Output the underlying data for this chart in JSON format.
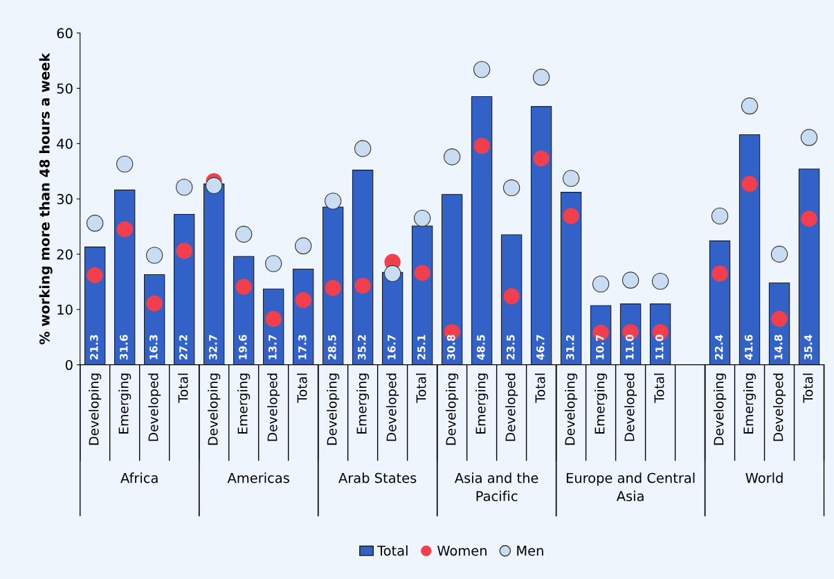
{
  "chart_data": {
    "type": "bar",
    "ylabel": "% working more than 48 hours a week",
    "categories": [
      "Developing",
      "Emerging",
      "Developed",
      "Total",
      "Developing",
      "Emerging",
      "Developed",
      "Total",
      "Developing",
      "Emerging",
      "Developed",
      "Total",
      "Developing",
      "Emerging",
      "Developed",
      "Total",
      "Developing",
      "Emerging",
      "Developed",
      "Total",
      null,
      "Developing",
      "Emerging",
      "Developed",
      "Total"
    ],
    "series": [
      {
        "name": "Total",
        "color": "#3262c8",
        "values": [
          21.3,
          31.6,
          16.3,
          27.2,
          32.7,
          19.6,
          13.7,
          17.3,
          28.5,
          35.2,
          16.7,
          25.1,
          30.8,
          48.5,
          23.5,
          46.7,
          31.2,
          10.7,
          11.0,
          11.0,
          null,
          22.4,
          41.6,
          14.8,
          35.4
        ],
        "value_labels": [
          "21.3",
          "31.6",
          "16.3",
          "27.2",
          "32.7",
          "19.6",
          "13.7",
          "17.3",
          "28.5",
          "35.2",
          "16.7",
          "25.1",
          "30.8",
          "48.5",
          "23.5",
          "46.7",
          "31.2",
          "10.7",
          "11.0",
          "11.0",
          null,
          "22.4",
          "41.6",
          "14.8",
          "35.4"
        ]
      },
      {
        "name": "Women",
        "type": "scatter",
        "color": "#f23f4e",
        "values": [
          16.2,
          24.5,
          11.1,
          20.6,
          33.2,
          14.1,
          8.3,
          11.7,
          13.9,
          14.3,
          18.6,
          16.6,
          5.9,
          39.6,
          12.4,
          37.3,
          26.9,
          5.8,
          5.9,
          5.9,
          null,
          16.5,
          32.7,
          8.3,
          26.4
        ]
      },
      {
        "name": "Men",
        "type": "scatter",
        "color": "#c9ddf2",
        "values": [
          25.6,
          36.3,
          19.8,
          32.1,
          32.4,
          23.6,
          18.3,
          21.5,
          29.6,
          39.1,
          16.5,
          26.5,
          37.6,
          53.4,
          32.0,
          52.0,
          33.7,
          14.6,
          15.3,
          15.1,
          null,
          26.9,
          46.8,
          20.0,
          41.1
        ]
      }
    ],
    "annotations": [
      "Africa",
      "Americas",
      "Arab States",
      "Asia and the Pacific",
      "Europe and Central Asia",
      "World"
    ],
    "ylim": [
      0,
      60
    ],
    "yticks": [
      0,
      10,
      20,
      30,
      40,
      50,
      60
    ],
    "marker": "circle",
    "grid": false,
    "legend": "bottom"
  }
}
